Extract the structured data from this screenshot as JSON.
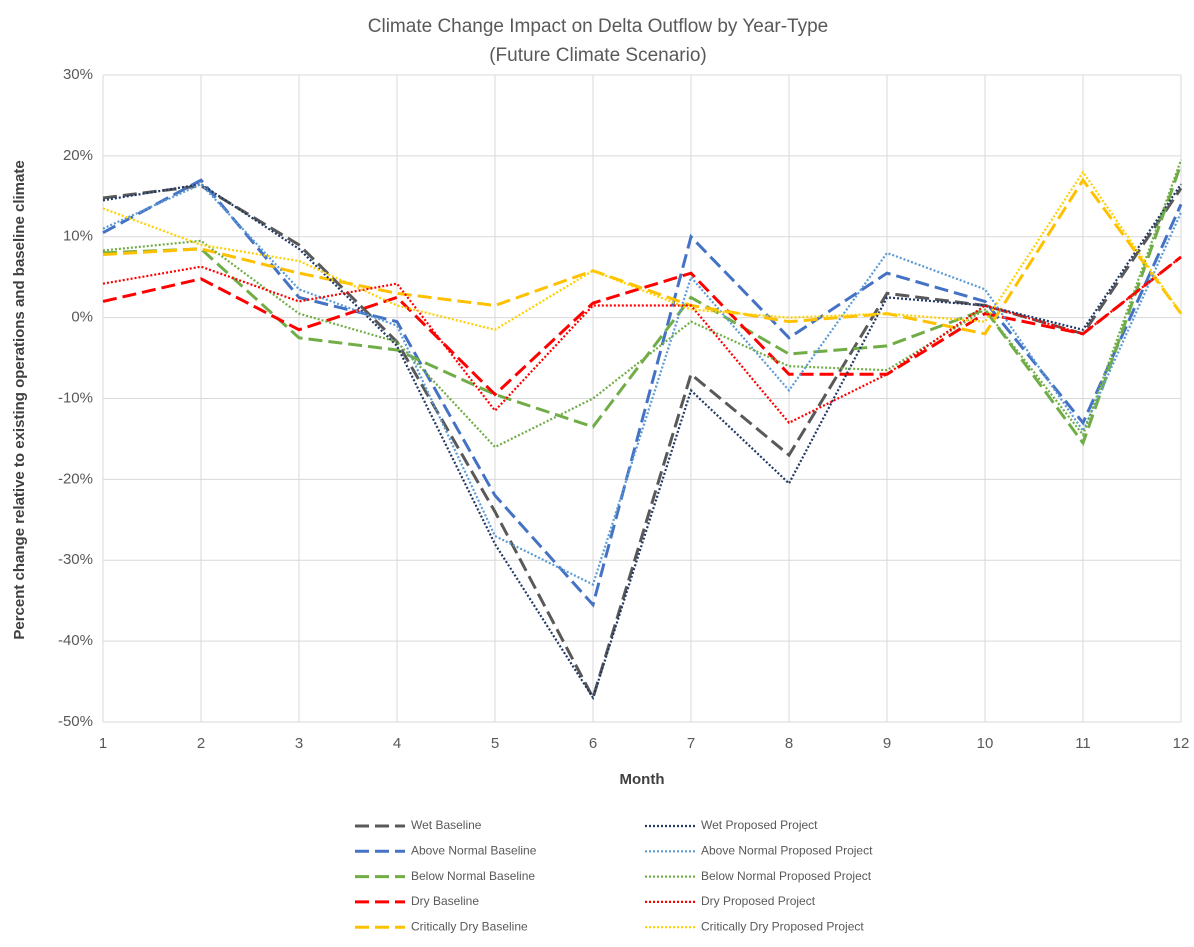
{
  "chart_data": {
    "type": "line",
    "title": "Climate Change Impact on Delta Outflow by Year-Type",
    "subtitle": "(Future Climate Scenario)",
    "x_label": "Month",
    "y_label": "Percent change relative to existing operations and baseline climate",
    "x": [
      1,
      2,
      3,
      4,
      5,
      6,
      7,
      8,
      9,
      10,
      11,
      12
    ],
    "xlim": [
      1,
      12
    ],
    "xticks": [
      1,
      2,
      3,
      4,
      5,
      6,
      7,
      8,
      9,
      10,
      11,
      12
    ],
    "ylim": [
      -50,
      30
    ],
    "yticks": [
      {
        "value": -50,
        "label": "-50%"
      },
      {
        "value": -40,
        "label": "-40%"
      },
      {
        "value": -30,
        "label": "-30%"
      },
      {
        "value": -20,
        "label": "-20%"
      },
      {
        "value": -10,
        "label": "-10%"
      },
      {
        "value": 0,
        "label": "0%"
      },
      {
        "value": 10,
        "label": "10%"
      },
      {
        "value": 20,
        "label": "20%"
      },
      {
        "value": 30,
        "label": "30%"
      }
    ],
    "grid": true,
    "legend": "bottom",
    "series": [
      {
        "name": "Wet Baseline",
        "color": "#595959",
        "style": "dashed",
        "values": [
          14.8,
          16.3,
          9,
          -3,
          -24,
          -47,
          -7,
          -17,
          3,
          1.5,
          -2,
          16
        ]
      },
      {
        "name": "Above Normal Baseline",
        "color": "#4472c4",
        "style": "dashed",
        "values": [
          10.5,
          17,
          2.5,
          -0.5,
          -22,
          -35.5,
          10,
          -2.5,
          5.5,
          2,
          -13,
          14
        ]
      },
      {
        "name": "Below Normal Baseline",
        "color": "#70ad47",
        "style": "dashed",
        "values": [
          8,
          8.5,
          -2.5,
          -4,
          -9.5,
          -13.5,
          2.5,
          -4.5,
          -3.5,
          1,
          -15.5,
          19
        ]
      },
      {
        "name": "Dry Baseline",
        "color": "#ff0000",
        "style": "dashed",
        "values": [
          2,
          4.8,
          -1.5,
          2.5,
          -9.5,
          1.8,
          5.5,
          -7,
          -7,
          0.5,
          -2,
          7.5
        ]
      },
      {
        "name": "Critically Dry Baseline",
        "color": "#ffc000",
        "style": "dashed",
        "values": [
          7.8,
          8.5,
          5.5,
          3,
          1.5,
          5.8,
          1.5,
          -0.5,
          0.5,
          -2,
          17,
          0.5
        ]
      },
      {
        "name": "Wet Proposed Project",
        "color": "#203864",
        "style": "dotted",
        "values": [
          14.5,
          16.5,
          8.5,
          -3.5,
          -28,
          -47,
          -9,
          -20.5,
          2.5,
          1.5,
          -1.5,
          16.5
        ]
      },
      {
        "name": "Above Normal Proposed Project",
        "color": "#5b9bd5",
        "style": "dotted",
        "values": [
          11,
          16.5,
          3.5,
          -1,
          -27,
          -33,
          5,
          -9,
          8,
          3.5,
          -14,
          13
        ]
      },
      {
        "name": "Below Normal Proposed Project",
        "color": "#70ad47",
        "style": "dotted",
        "values": [
          8.3,
          9.5,
          0.5,
          -3,
          -16,
          -10,
          -0.5,
          -6,
          -6.5,
          1,
          -14.5,
          19.5
        ]
      },
      {
        "name": "Dry Proposed Project",
        "color": "#ff0000",
        "style": "dotted",
        "values": [
          4.2,
          6.3,
          2,
          4.2,
          -11.5,
          1.5,
          1.5,
          -13,
          -7,
          1.5,
          -2,
          7.5
        ]
      },
      {
        "name": "Critically Dry Proposed Project",
        "color": "#ffd000",
        "style": "dotted",
        "values": [
          13.5,
          9,
          7,
          1.5,
          -1.5,
          5.8,
          1,
          0,
          0.5,
          -0.5,
          18,
          0.5
        ]
      }
    ]
  }
}
